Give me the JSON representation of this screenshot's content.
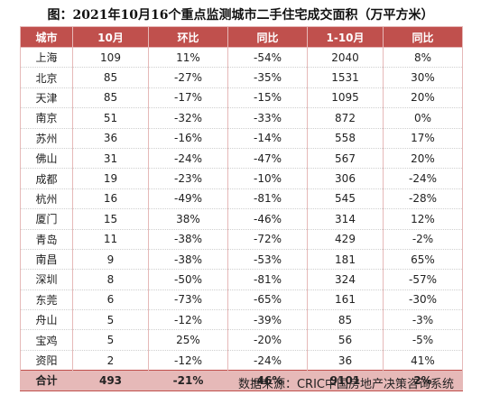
{
  "title": "图：2021年10月16个重点监测城市二手住宅成交面积（万平方米）",
  "headers": [
    "城市",
    "10月",
    "环比",
    "同比",
    "1-10月",
    "同比"
  ],
  "rows": [
    [
      "上海",
      "109",
      "11%",
      "-54%",
      "2040",
      "8%"
    ],
    [
      "北京",
      "85",
      "-27%",
      "-35%",
      "1531",
      "30%"
    ],
    [
      "天津",
      "85",
      "-17%",
      "-15%",
      "1095",
      "20%"
    ],
    [
      "南京",
      "51",
      "-32%",
      "-33%",
      "872",
      "0%"
    ],
    [
      "苏州",
      "36",
      "-16%",
      "-14%",
      "558",
      "17%"
    ],
    [
      "佛山",
      "31",
      "-24%",
      "-47%",
      "567",
      "20%"
    ],
    [
      "成都",
      "19",
      "-23%",
      "-10%",
      "306",
      "-24%"
    ],
    [
      "杭州",
      "16",
      "-49%",
      "-81%",
      "545",
      "-28%"
    ],
    [
      "厦门",
      "15",
      "38%",
      "-46%",
      "314",
      "12%"
    ],
    [
      "青岛",
      "11",
      "-38%",
      "-72%",
      "429",
      "-2%"
    ],
    [
      "南昌",
      "9",
      "-38%",
      "-53%",
      "181",
      "65%"
    ],
    [
      "深圳",
      "8",
      "-50%",
      "-81%",
      "324",
      "-57%"
    ],
    [
      "东莞",
      "6",
      "-73%",
      "-65%",
      "161",
      "-30%"
    ],
    [
      "舟山",
      "5",
      "-12%",
      "-39%",
      "85",
      "-3%"
    ],
    [
      "宝鸡",
      "5",
      "25%",
      "-20%",
      "56",
      "-5%"
    ],
    [
      "资阳",
      "2",
      "-12%",
      "-24%",
      "36",
      "41%"
    ]
  ],
  "total": [
    "合计",
    "493",
    "-21%",
    "-46%",
    "9101",
    "2%"
  ],
  "source": "数据来源：CRIC中国房地产决策咨询系统",
  "colors": {
    "header_bg": "#c0504d",
    "total_bg": "#e6b9b8"
  }
}
